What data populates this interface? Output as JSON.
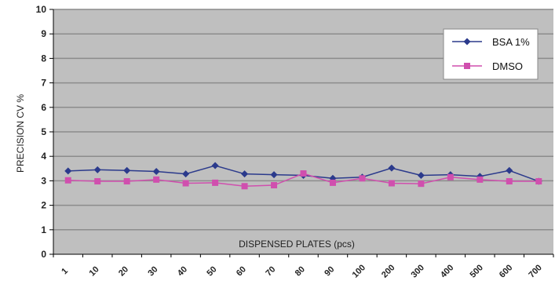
{
  "chart_data": {
    "type": "line",
    "title": "",
    "xlabel": "DISPENSED PLATES (pcs)",
    "ylabel": "PRECISION CV %",
    "categories": [
      "1",
      "10",
      "20",
      "30",
      "40",
      "50",
      "60",
      "70",
      "80",
      "90",
      "100",
      "200",
      "300",
      "400",
      "500",
      "600",
      "700"
    ],
    "ylim": [
      0,
      10
    ],
    "yticks": [
      "0",
      "1",
      "2",
      "3",
      "4",
      "5",
      "6",
      "7",
      "8",
      "9",
      "10"
    ],
    "grid": true,
    "legend_position": "top-right",
    "series": [
      {
        "name": "BSA 1%",
        "color": "#2b3a8c",
        "marker": "diamond",
        "values": [
          3.4,
          3.45,
          3.42,
          3.38,
          3.28,
          3.62,
          3.28,
          3.25,
          3.22,
          3.1,
          3.15,
          3.52,
          3.22,
          3.25,
          3.18,
          3.42,
          2.98
        ]
      },
      {
        "name": "DMSO",
        "color": "#d04fae",
        "marker": "square",
        "values": [
          3.02,
          2.98,
          2.98,
          3.05,
          2.9,
          2.92,
          2.78,
          2.82,
          3.3,
          2.92,
          3.1,
          2.9,
          2.88,
          3.15,
          3.05,
          2.98,
          2.98
        ]
      }
    ]
  },
  "colors": {
    "plot_background": "#bfbfbf",
    "gridline": "#8c8c8c",
    "axis": "#000000"
  }
}
